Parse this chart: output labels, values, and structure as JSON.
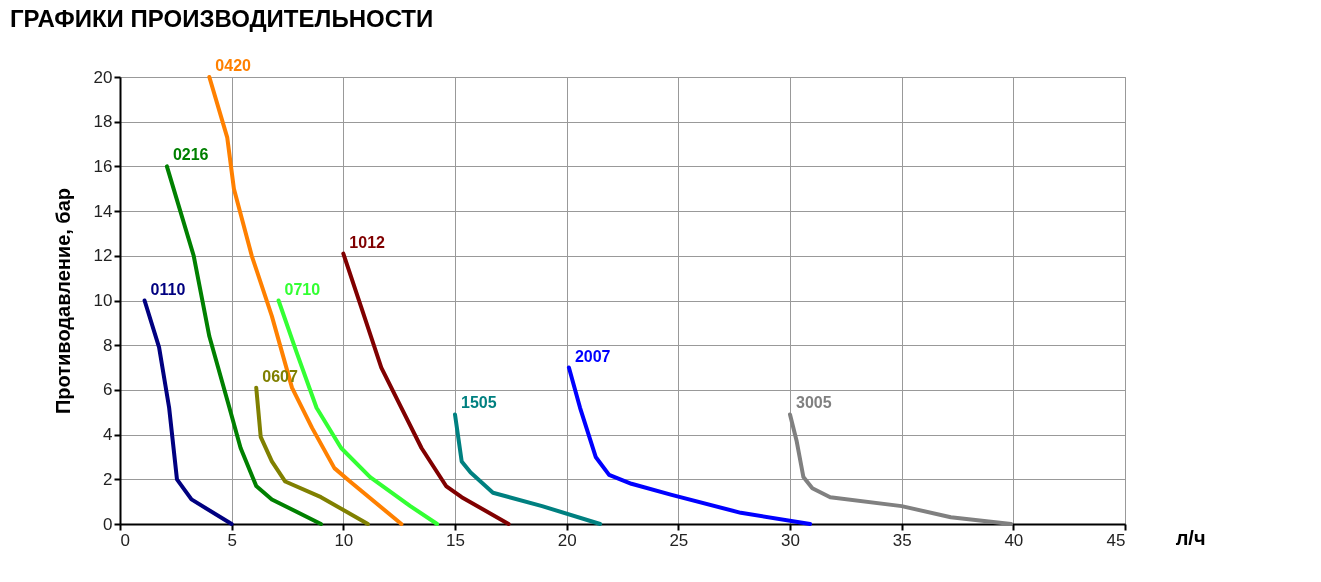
{
  "chart_data": {
    "type": "line",
    "title": "ГРАФИКИ ПРОИЗВОДИТЕЛЬНОСТИ",
    "xlabel": "л/ч",
    "ylabel": "Противодавление, бар",
    "xlim": [
      0,
      45
    ],
    "ylim": [
      0,
      20
    ],
    "xticks": [
      0,
      5,
      10,
      15,
      20,
      25,
      30,
      35,
      40,
      45
    ],
    "yticks": [
      0,
      2,
      4,
      6,
      8,
      10,
      12,
      14,
      16,
      18,
      20
    ],
    "grid": true,
    "legend": false,
    "marker": "none",
    "line_style": "solid",
    "series": [
      {
        "name": "0110",
        "color": "#000080",
        "x": [
          1.1,
          1.75,
          2.2,
          2.55,
          3.2,
          5
        ],
        "values": [
          10,
          7.9,
          5.2,
          2,
          1.1,
          0
        ]
      },
      {
        "name": "0216",
        "color": "#008000",
        "x": [
          2.1,
          3.3,
          4,
          4.9,
          5.4,
          6.1,
          6.8,
          9
        ],
        "values": [
          16,
          12,
          8.4,
          5.2,
          3.4,
          1.7,
          1.1,
          0
        ]
      },
      {
        "name": "0420",
        "color": "#ff8000",
        "x": [
          4,
          4.8,
          5.1,
          5.9,
          6.8,
          7.7,
          8.6,
          9.6,
          10.3,
          12.6
        ],
        "values": [
          20,
          17.3,
          15,
          12,
          9.3,
          6.1,
          4.3,
          2.5,
          1.9,
          0
        ]
      },
      {
        "name": "0607",
        "color": "#808000",
        "x": [
          6.1,
          6.3,
          6.8,
          7.4,
          9,
          11.1
        ],
        "values": [
          6.1,
          3.9,
          2.8,
          1.9,
          1.2,
          0
        ]
      },
      {
        "name": "0710",
        "color": "#33ff33",
        "x": [
          7.1,
          7.9,
          8.8,
          9.9,
          11.2,
          13,
          14.2
        ],
        "values": [
          10,
          7.7,
          5.2,
          3.4,
          2.1,
          0.8,
          0
        ]
      },
      {
        "name": "1012",
        "color": "#800000",
        "x": [
          10,
          10.8,
          11.7,
          12.6,
          13.5,
          14.6,
          15.3,
          17.4
        ],
        "values": [
          12.1,
          9.7,
          7,
          5.2,
          3.4,
          1.7,
          1.2,
          0
        ]
      },
      {
        "name": "1505",
        "color": "#008080",
        "x": [
          15,
          15.3,
          15.7,
          16.7,
          18.9,
          21.5
        ],
        "values": [
          4.9,
          2.8,
          2.3,
          1.4,
          0.8,
          0
        ]
      },
      {
        "name": "2007",
        "color": "#0000ff",
        "x": [
          20.1,
          20.6,
          21.3,
          21.9,
          22.9,
          24.7,
          27.8,
          30.9
        ],
        "values": [
          7,
          5.2,
          3,
          2.2,
          1.8,
          1.3,
          0.5,
          0
        ]
      },
      {
        "name": "3005",
        "color": "#808080",
        "x": [
          30,
          30.3,
          30.6,
          31,
          31.8,
          35,
          37.2,
          39.9
        ],
        "values": [
          4.9,
          3.7,
          2.1,
          1.6,
          1.2,
          0.8,
          0.3,
          0
        ]
      }
    ]
  }
}
